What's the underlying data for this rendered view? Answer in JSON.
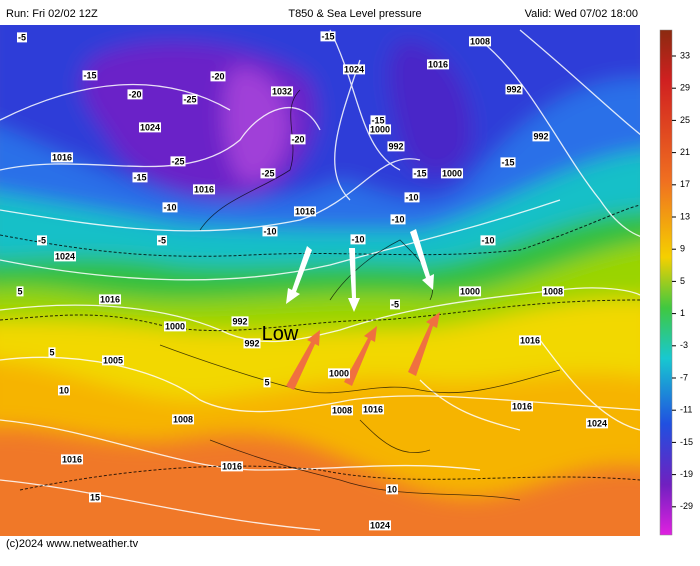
{
  "header": {
    "run": "Run: Fri 02/02 12Z",
    "title": "T850 & Sea Level pressure",
    "valid": "Valid: Wed 07/02 18:00"
  },
  "colorbar": {
    "labels": [
      "33",
      "29",
      "25",
      "21",
      "17",
      "13",
      "9",
      "5",
      "1",
      "-3",
      "-7",
      "-11",
      "-15",
      "-19",
      "-29"
    ]
  },
  "map": {
    "low_label": "Low",
    "labels": [
      "-5",
      "-15",
      "-20",
      "-25",
      "-20",
      "1032",
      "1024",
      "-25",
      "-15",
      "1016",
      "-20",
      "-25",
      "1016",
      "-10",
      "1016",
      "-10",
      "-5",
      "1024",
      "-5",
      "-15",
      "1024",
      "1016",
      "1008",
      "992",
      "992",
      "-15",
      "-15",
      "1000",
      "992",
      "1000",
      "-15",
      "-10",
      "-10",
      "-10",
      "-10",
      "5",
      "1016",
      "1000",
      "992",
      "992",
      "-5",
      "1000",
      "1008",
      "1016",
      "1005",
      "5",
      "1000",
      "1008",
      "1008",
      "1016",
      "1016",
      "1024",
      "1016",
      "1016",
      "15",
      "1024",
      "10",
      "5",
      "10"
    ]
  },
  "footer": {
    "credit": "(c)2024  www.netweather.tv"
  }
}
